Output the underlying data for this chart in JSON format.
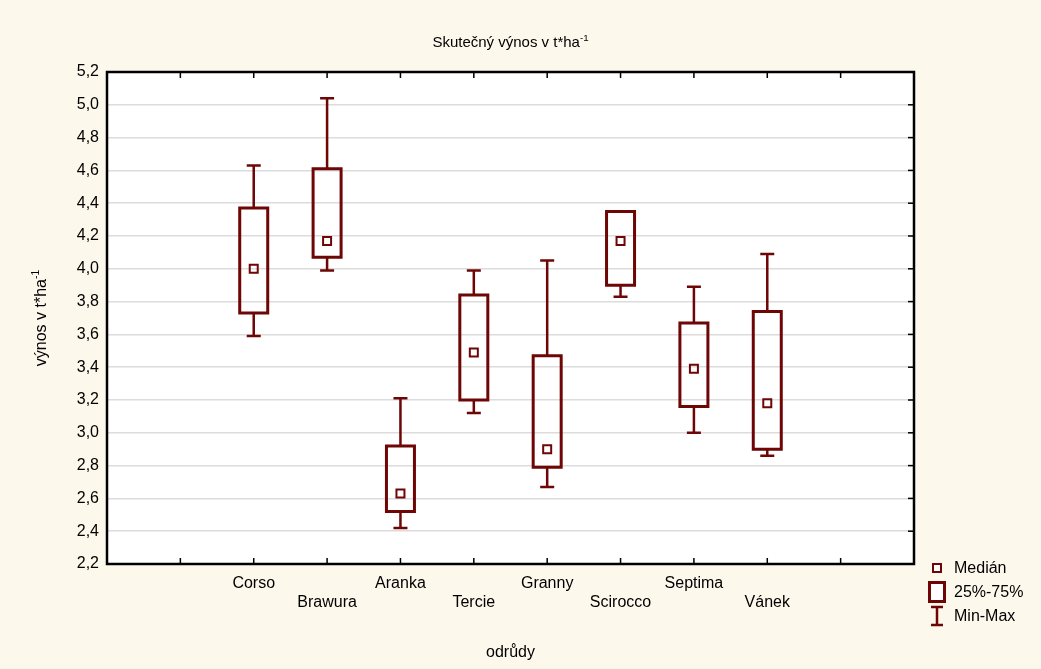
{
  "chart_data": {
    "type": "box",
    "title": "Skutečný výnos v t*ha$^{-1}$",
    "xlabel": "odrůdy",
    "ylabel": "výnos v t*ha$^{-1}$",
    "categories": [
      null,
      null,
      "Corso",
      "Brawura",
      "Aranka",
      "Tercie",
      "Granny",
      "Scirocco",
      "Septima",
      "Vánek",
      null,
      null
    ],
    "series": [
      {
        "name": "25%-75%",
        "color": "#6e0606",
        "boxes": [
          null,
          null,
          {
            "low": 3.59,
            "q1": 3.73,
            "median": 4.0,
            "q3": 4.37,
            "high": 4.63
          },
          {
            "low": 3.99,
            "q1": 4.07,
            "median": 4.17,
            "q3": 4.61,
            "high": 5.04
          },
          {
            "low": 2.42,
            "q1": 2.52,
            "median": 2.63,
            "q3": 2.92,
            "high": 3.21
          },
          {
            "low": 3.12,
            "q1": 3.2,
            "median": 3.49,
            "q3": 3.84,
            "high": 3.99
          },
          {
            "low": 2.67,
            "q1": 2.79,
            "median": 2.9,
            "q3": 3.47,
            "high": 4.05
          },
          {
            "low": 3.83,
            "q1": 3.9,
            "median": 4.17,
            "q3": 4.35,
            "high": 4.35
          },
          {
            "low": 3.0,
            "q1": 3.16,
            "median": 3.39,
            "q3": 3.67,
            "high": 3.89
          },
          {
            "low": 2.86,
            "q1": 2.9,
            "median": 3.18,
            "q3": 3.74,
            "high": 4.09
          },
          null,
          null
        ]
      }
    ],
    "annotations": [
      "Medián",
      "Min-Max"
    ],
    "ylim": [
      2.2,
      5.2
    ],
    "yticks": [
      {
        "value": 2.2,
        "label": "2,2"
      },
      {
        "value": 2.4,
        "label": "2,4"
      },
      {
        "value": 2.6,
        "label": "2,6"
      },
      {
        "value": 2.8,
        "label": "2,8"
      },
      {
        "value": 3.0,
        "label": "3,0"
      },
      {
        "value": 3.2,
        "label": "3,2"
      },
      {
        "value": 3.4,
        "label": "3,4"
      },
      {
        "value": 3.6,
        "label": "3,6"
      },
      {
        "value": 3.8,
        "label": "3,8"
      },
      {
        "value": 4.0,
        "label": "4,0"
      },
      {
        "value": 4.2,
        "label": "4,2"
      },
      {
        "value": 4.4,
        "label": "4,4"
      },
      {
        "value": 4.6,
        "label": "4,6"
      },
      {
        "value": 4.8,
        "label": "4,8"
      },
      {
        "value": 5.0,
        "label": "5,0"
      },
      {
        "value": 5.2,
        "label": "5,2"
      }
    ],
    "grid": "y",
    "legend": "bottom right"
  }
}
